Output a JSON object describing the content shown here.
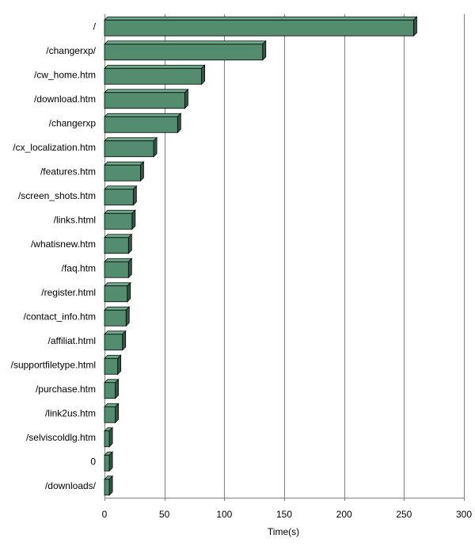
{
  "chart_data": {
    "type": "bar",
    "orientation": "horizontal",
    "xlabel": "Time(s)",
    "ylabel": "",
    "xlim": [
      0,
      300
    ],
    "xticks": [
      0,
      50,
      100,
      150,
      200,
      250,
      300
    ],
    "grid": "vertical",
    "legend": "none",
    "categories": [
      "/",
      "/changerxp/",
      "/cw_home.htm",
      "/download.htm",
      "/changerxp",
      "/cx_localization.htm",
      "/features.htm",
      "/screen_shots.htm",
      "/links.html",
      "/whatisnew.htm",
      "/faq.htm",
      "/register.html",
      "/contact_info.htm",
      "/affiliat.html",
      "/supportfiletype.html",
      "/purchase.htm",
      "/link2us.htm",
      "/selviscoldlg.htm",
      "0",
      "/downloads/"
    ],
    "values": [
      258,
      132,
      81,
      67,
      61,
      41,
      30,
      24,
      23,
      20,
      20,
      19,
      18,
      15,
      11,
      9,
      9,
      4,
      4,
      4
    ]
  },
  "colors": {
    "bar_front": "#548c70",
    "bar_top": "#6faa8c",
    "bar_side": "#2f5a45",
    "bar_edge": "#000000",
    "grid": "#808080",
    "plot_border": "#808080"
  }
}
